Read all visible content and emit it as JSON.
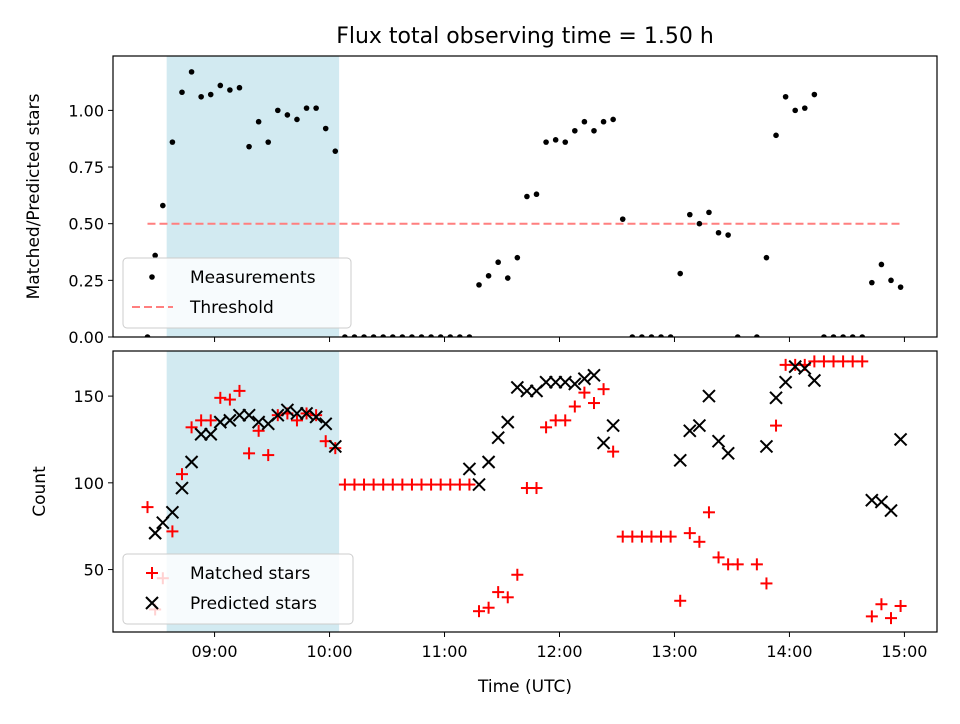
{
  "title": "Flux total observing time = 1.50 h",
  "colors": {
    "shade": "#add8e6",
    "measurement": "#000000",
    "threshold": "#ff7f7f",
    "matched": "#ff0000",
    "predicted": "#000000"
  },
  "x_axis": {
    "label": "Time (UTC)",
    "range": [
      "08:07",
      "15:17"
    ],
    "ticks": [
      "09:00",
      "10:00",
      "11:00",
      "12:00",
      "13:00",
      "14:00",
      "15:00"
    ]
  },
  "shaded_interval": [
    "08:35",
    "10:05"
  ],
  "chart_data": [
    {
      "type": "scatter",
      "ylabel": "Matched/Predicted stars",
      "ylim": [
        0,
        1.24
      ],
      "yticks": [
        "0.00",
        "0.25",
        "0.50",
        "0.75",
        "1.00"
      ],
      "legend_position": "lower-left",
      "threshold": {
        "name": "Threshold",
        "value": 0.5,
        "x_range": [
          "08:25",
          "14:58"
        ]
      },
      "series": [
        {
          "name": "Measurements",
          "points": [
            [
              "08:25",
              0.0
            ],
            [
              "08:29",
              0.36
            ],
            [
              "08:33",
              0.58
            ],
            [
              "08:38",
              0.86
            ],
            [
              "08:43",
              1.08
            ],
            [
              "08:48",
              1.17
            ],
            [
              "08:53",
              1.06
            ],
            [
              "08:58",
              1.07
            ],
            [
              "09:03",
              1.11
            ],
            [
              "09:08",
              1.09
            ],
            [
              "09:13",
              1.1
            ],
            [
              "09:18",
              0.84
            ],
            [
              "09:23",
              0.95
            ],
            [
              "09:28",
              0.86
            ],
            [
              "09:33",
              1.0
            ],
            [
              "09:38",
              0.98
            ],
            [
              "09:43",
              0.96
            ],
            [
              "09:48",
              1.01
            ],
            [
              "09:53",
              1.01
            ],
            [
              "09:58",
              0.92
            ],
            [
              "10:03",
              0.82
            ],
            [
              "10:08",
              0.0
            ],
            [
              "10:13",
              0.0
            ],
            [
              "10:18",
              0.0
            ],
            [
              "10:23",
              0.0
            ],
            [
              "10:28",
              0.0
            ],
            [
              "10:33",
              0.0
            ],
            [
              "10:38",
              0.0
            ],
            [
              "10:43",
              0.0
            ],
            [
              "10:48",
              0.0
            ],
            [
              "10:53",
              0.0
            ],
            [
              "10:58",
              0.0
            ],
            [
              "11:03",
              0.0
            ],
            [
              "11:08",
              0.0
            ],
            [
              "11:13",
              0.0
            ],
            [
              "11:18",
              0.23
            ],
            [
              "11:23",
              0.27
            ],
            [
              "11:28",
              0.33
            ],
            [
              "11:33",
              0.26
            ],
            [
              "11:38",
              0.35
            ],
            [
              "11:43",
              0.62
            ],
            [
              "11:48",
              0.63
            ],
            [
              "11:53",
              0.86
            ],
            [
              "11:58",
              0.87
            ],
            [
              "12:03",
              0.86
            ],
            [
              "12:08",
              0.91
            ],
            [
              "12:13",
              0.95
            ],
            [
              "12:18",
              0.91
            ],
            [
              "12:23",
              0.95
            ],
            [
              "12:28",
              0.96
            ],
            [
              "12:33",
              0.52
            ],
            [
              "12:38",
              0.0
            ],
            [
              "12:43",
              0.0
            ],
            [
              "12:48",
              0.0
            ],
            [
              "12:53",
              0.0
            ],
            [
              "12:58",
              0.0
            ],
            [
              "13:03",
              0.28
            ],
            [
              "13:08",
              0.54
            ],
            [
              "13:13",
              0.5
            ],
            [
              "13:18",
              0.55
            ],
            [
              "13:23",
              0.46
            ],
            [
              "13:28",
              0.45
            ],
            [
              "13:33",
              0.0
            ],
            [
              "13:43",
              0.0
            ],
            [
              "13:48",
              0.35
            ],
            [
              "13:53",
              0.89
            ],
            [
              "13:58",
              1.06
            ],
            [
              "14:03",
              1.0
            ],
            [
              "14:08",
              1.01
            ],
            [
              "14:13",
              1.07
            ],
            [
              "14:18",
              0.0
            ],
            [
              "14:23",
              0.0
            ],
            [
              "14:28",
              0.0
            ],
            [
              "14:33",
              0.0
            ],
            [
              "14:38",
              0.0
            ],
            [
              "14:43",
              0.24
            ],
            [
              "14:48",
              0.32
            ],
            [
              "14:53",
              0.25
            ],
            [
              "14:58",
              0.22
            ]
          ]
        }
      ]
    },
    {
      "type": "scatter",
      "ylabel": "Count",
      "ylim": [
        14,
        176
      ],
      "yticks": [
        "50",
        "100",
        "150"
      ],
      "legend_position": "lower-left",
      "series": [
        {
          "name": "Matched stars",
          "marker": "+",
          "points": [
            [
              "08:25",
              86
            ],
            [
              "08:29",
              27
            ],
            [
              "08:33",
              45
            ],
            [
              "08:38",
              72
            ],
            [
              "08:43",
              105
            ],
            [
              "08:48",
              132
            ],
            [
              "08:53",
              136
            ],
            [
              "08:58",
              136
            ],
            [
              "09:03",
              149
            ],
            [
              "09:08",
              148
            ],
            [
              "09:13",
              153
            ],
            [
              "09:18",
              117
            ],
            [
              "09:23",
              130
            ],
            [
              "09:28",
              116
            ],
            [
              "09:33",
              139
            ],
            [
              "09:38",
              140
            ],
            [
              "09:43",
              136
            ],
            [
              "09:48",
              140
            ],
            [
              "09:53",
              139
            ],
            [
              "09:58",
              124
            ],
            [
              "10:03",
              120
            ],
            [
              "10:08",
              99
            ],
            [
              "10:13",
              99
            ],
            [
              "10:18",
              99
            ],
            [
              "10:23",
              99
            ],
            [
              "10:28",
              99
            ],
            [
              "10:33",
              99
            ],
            [
              "10:38",
              99
            ],
            [
              "10:43",
              99
            ],
            [
              "10:48",
              99
            ],
            [
              "10:53",
              99
            ],
            [
              "10:58",
              99
            ],
            [
              "11:03",
              99
            ],
            [
              "11:08",
              99
            ],
            [
              "11:13",
              99
            ],
            [
              "11:18",
              26
            ],
            [
              "11:23",
              28
            ],
            [
              "11:28",
              37
            ],
            [
              "11:33",
              34
            ],
            [
              "11:38",
              47
            ],
            [
              "11:43",
              97
            ],
            [
              "11:48",
              97
            ],
            [
              "11:53",
              132
            ],
            [
              "11:58",
              136
            ],
            [
              "12:03",
              136
            ],
            [
              "12:08",
              144
            ],
            [
              "12:13",
              152
            ],
            [
              "12:18",
              146
            ],
            [
              "12:23",
              154
            ],
            [
              "12:28",
              118
            ],
            [
              "12:33",
              69
            ],
            [
              "12:38",
              69
            ],
            [
              "12:43",
              69
            ],
            [
              "12:48",
              69
            ],
            [
              "12:53",
              69
            ],
            [
              "12:58",
              69
            ],
            [
              "13:03",
              32
            ],
            [
              "13:08",
              71
            ],
            [
              "13:13",
              66
            ],
            [
              "13:18",
              83
            ],
            [
              "13:23",
              57
            ],
            [
              "13:28",
              53
            ],
            [
              "13:33",
              53
            ],
            [
              "13:43",
              53
            ],
            [
              "13:48",
              42
            ],
            [
              "13:53",
              133
            ],
            [
              "13:58",
              168
            ],
            [
              "14:03",
              168
            ],
            [
              "14:08",
              168
            ],
            [
              "14:13",
              170
            ],
            [
              "14:18",
              170
            ],
            [
              "14:23",
              170
            ],
            [
              "14:28",
              170
            ],
            [
              "14:33",
              170
            ],
            [
              "14:38",
              170
            ],
            [
              "14:43",
              23
            ],
            [
              "14:48",
              30
            ],
            [
              "14:53",
              22
            ],
            [
              "14:58",
              29
            ]
          ]
        },
        {
          "name": "Predicted stars",
          "marker": "x",
          "points": [
            [
              "08:29",
              71
            ],
            [
              "08:33",
              77
            ],
            [
              "08:38",
              83
            ],
            [
              "08:43",
              97
            ],
            [
              "08:48",
              112
            ],
            [
              "08:53",
              128
            ],
            [
              "08:58",
              128
            ],
            [
              "09:03",
              135
            ],
            [
              "09:08",
              136
            ],
            [
              "09:13",
              139
            ],
            [
              "09:18",
              139
            ],
            [
              "09:23",
              135
            ],
            [
              "09:28",
              134
            ],
            [
              "09:33",
              139
            ],
            [
              "09:38",
              142
            ],
            [
              "09:43",
              140
            ],
            [
              "09:48",
              140
            ],
            [
              "09:53",
              138
            ],
            [
              "09:58",
              134
            ],
            [
              "10:03",
              121
            ],
            [
              "11:13",
              108
            ],
            [
              "11:18",
              99
            ],
            [
              "11:23",
              112
            ],
            [
              "11:28",
              126
            ],
            [
              "11:33",
              135
            ],
            [
              "11:38",
              155
            ],
            [
              "11:43",
              153
            ],
            [
              "11:48",
              153
            ],
            [
              "11:53",
              158
            ],
            [
              "11:58",
              158
            ],
            [
              "12:03",
              158
            ],
            [
              "12:08",
              157
            ],
            [
              "12:13",
              160
            ],
            [
              "12:18",
              162
            ],
            [
              "12:23",
              123
            ],
            [
              "12:28",
              133
            ],
            [
              "13:03",
              113
            ],
            [
              "13:08",
              130
            ],
            [
              "13:13",
              133
            ],
            [
              "13:18",
              150
            ],
            [
              "13:23",
              124
            ],
            [
              "13:28",
              117
            ],
            [
              "13:48",
              121
            ],
            [
              "13:53",
              149
            ],
            [
              "13:58",
              158
            ],
            [
              "14:03",
              167
            ],
            [
              "14:08",
              166
            ],
            [
              "14:13",
              159
            ],
            [
              "14:43",
              90
            ],
            [
              "14:48",
              89
            ],
            [
              "14:53",
              84
            ],
            [
              "14:58",
              125
            ]
          ]
        }
      ]
    }
  ]
}
